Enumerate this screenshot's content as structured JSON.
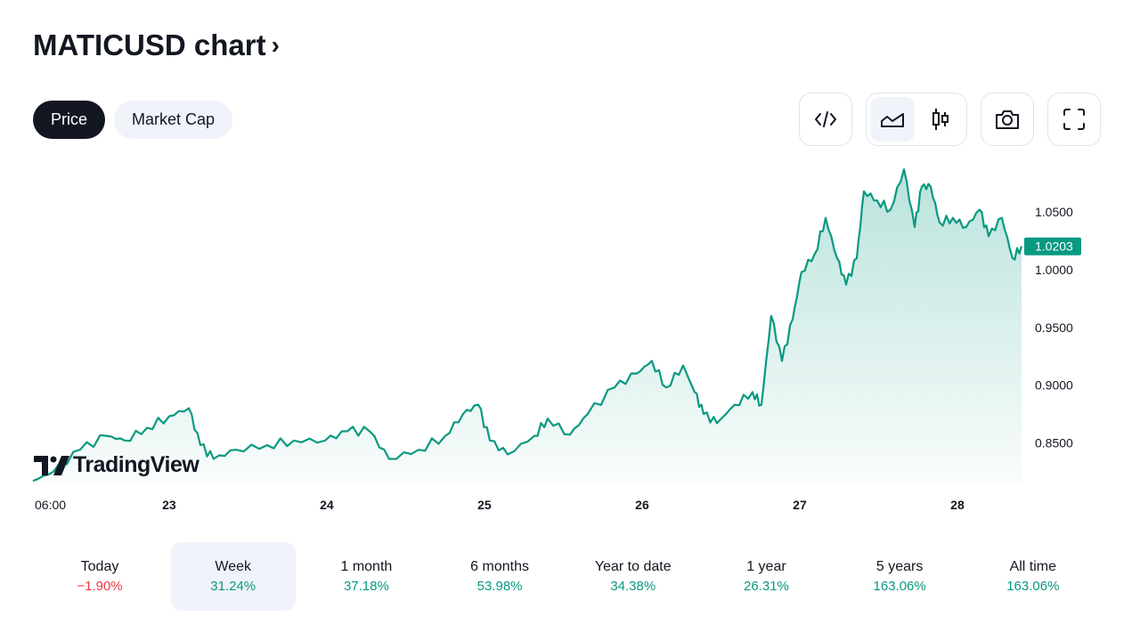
{
  "header": {
    "title": "MATICUSD chart",
    "chevron": "›"
  },
  "tabs": [
    {
      "label": "Price",
      "active": true
    },
    {
      "label": "Market Cap",
      "active": false
    }
  ],
  "toolbar": {
    "icons": [
      "embed-code-icon",
      "area-chart-icon",
      "candlestick-icon",
      "camera-icon",
      "fullscreen-icon"
    ]
  },
  "brand": "TradingView",
  "colors": {
    "line": "#089981",
    "up": "#089981",
    "down": "#f23645",
    "dark": "#131722"
  },
  "chart_data": {
    "type": "area",
    "symbol": "MATICUSD",
    "x_unit": "day of month",
    "x": [
      22.136,
      22.266,
      22.435,
      22.605,
      22.718,
      22.859,
      23.0,
      23.124,
      23.198,
      23.282,
      23.424,
      23.621,
      23.791,
      23.989,
      24.13,
      24.271,
      24.395,
      24.582,
      24.751,
      24.864,
      24.96,
      25.034,
      25.147,
      25.316,
      25.401,
      25.542,
      25.655,
      25.825,
      25.966,
      26.062,
      26.153,
      26.26,
      26.333,
      26.39,
      26.475,
      26.588,
      26.701,
      26.757,
      26.819,
      26.887,
      26.955,
      27.011,
      27.096,
      27.164,
      27.237,
      27.294,
      27.362,
      27.407,
      27.492,
      27.576,
      27.661,
      27.729,
      27.774,
      27.831,
      27.887,
      27.972,
      28.056,
      28.141,
      28.198,
      28.282,
      28.35,
      28.407
    ],
    "y": [
      0.817,
      0.825,
      0.844,
      0.856,
      0.852,
      0.863,
      0.873,
      0.88,
      0.848,
      0.836,
      0.844,
      0.848,
      0.852,
      0.852,
      0.86,
      0.86,
      0.836,
      0.844,
      0.856,
      0.875,
      0.883,
      0.852,
      0.84,
      0.856,
      0.871,
      0.857,
      0.875,
      0.898,
      0.91,
      0.921,
      0.898,
      0.917,
      0.894,
      0.875,
      0.867,
      0.883,
      0.894,
      0.883,
      0.96,
      0.921,
      0.957,
      0.998,
      1.014,
      1.045,
      1.01,
      0.987,
      1.01,
      1.068,
      1.06,
      1.052,
      1.087,
      1.037,
      1.072,
      1.072,
      1.041,
      1.045,
      1.037,
      1.052,
      1.029,
      1.045,
      1.01,
      1.0203
    ],
    "last_price": "1.0203",
    "y_ticks": [
      "1.0500",
      "1.0000",
      "0.9500",
      "0.9000",
      "0.8500"
    ],
    "y_tick_values": [
      1.05,
      1.0,
      0.95,
      0.9,
      0.85
    ],
    "x_ticks": [
      "06:00",
      "23",
      "24",
      "25",
      "26",
      "27",
      "28"
    ],
    "x_tick_values": [
      22.25,
      23,
      24,
      25,
      26,
      27,
      28
    ],
    "xlim": [
      22.136,
      28.407
    ],
    "ylim": [
      0.8,
      1.1
    ],
    "grid": false
  },
  "periods": [
    {
      "label": "Today",
      "value": "−1.90%",
      "dir": "down"
    },
    {
      "label": "Week",
      "value": "31.24%",
      "dir": "up",
      "active": true
    },
    {
      "label": "1 month",
      "value": "37.18%",
      "dir": "up"
    },
    {
      "label": "6 months",
      "value": "53.98%",
      "dir": "up"
    },
    {
      "label": "Year to date",
      "value": "34.38%",
      "dir": "up"
    },
    {
      "label": "1 year",
      "value": "26.31%",
      "dir": "up"
    },
    {
      "label": "5 years",
      "value": "163.06%",
      "dir": "up"
    },
    {
      "label": "All time",
      "value": "163.06%",
      "dir": "up"
    }
  ]
}
